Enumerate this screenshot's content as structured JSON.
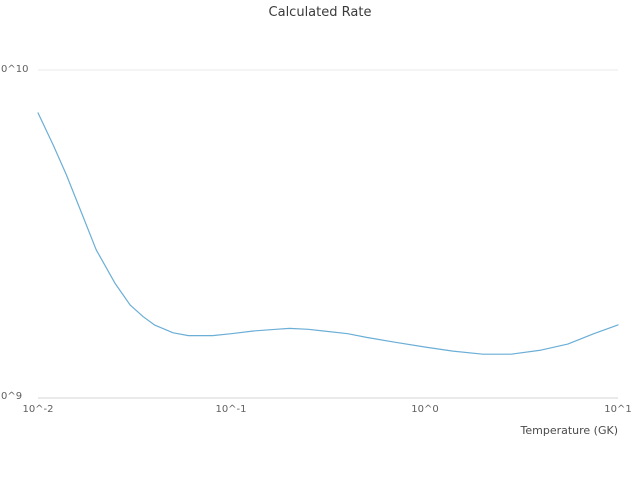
{
  "chart_data": {
    "type": "line",
    "title": "Calculated Rate",
    "xlabel": "Temperature (GK)",
    "ylabel": "",
    "x_scale": "log",
    "y_scale": "log",
    "xlim": [
      0.01,
      10
    ],
    "ylim": [
      1000000000.0,
      10000000000.0
    ],
    "grid": "horizontal-decades-only",
    "legend": "none",
    "series_name": "calculated-rate",
    "series_color": "#6baed6",
    "x_tick_labels": [
      "10^-2",
      "10^-1",
      "10^0",
      "10^1"
    ],
    "y_tick_labels": [
      "0^10",
      "0^9"
    ],
    "points": [
      [
        0.01,
        7400000000.0
      ],
      [
        0.012,
        5900000000.0
      ],
      [
        0.014,
        4800000000.0
      ],
      [
        0.017,
        3600000000.0
      ],
      [
        0.02,
        2830000000.0
      ],
      [
        0.025,
        2240000000.0
      ],
      [
        0.03,
        1920000000.0
      ],
      [
        0.035,
        1770000000.0
      ],
      [
        0.04,
        1670000000.0
      ],
      [
        0.05,
        1580000000.0
      ],
      [
        0.06,
        1550000000.0
      ],
      [
        0.08,
        1550000000.0
      ],
      [
        0.1,
        1570000000.0
      ],
      [
        0.13,
        1600000000.0
      ],
      [
        0.17,
        1620000000.0
      ],
      [
        0.2,
        1630000000.0
      ],
      [
        0.25,
        1620000000.0
      ],
      [
        0.3,
        1600000000.0
      ],
      [
        0.4,
        1570000000.0
      ],
      [
        0.5,
        1530000000.0
      ],
      [
        0.7,
        1480000000.0
      ],
      [
        1.0,
        1430000000.0
      ],
      [
        1.4,
        1390000000.0
      ],
      [
        2.0,
        1360000000.0
      ],
      [
        2.8,
        1360000000.0
      ],
      [
        4.0,
        1400000000.0
      ],
      [
        5.5,
        1460000000.0
      ],
      [
        7.5,
        1570000000.0
      ],
      [
        10,
        1670000000.0
      ]
    ]
  }
}
